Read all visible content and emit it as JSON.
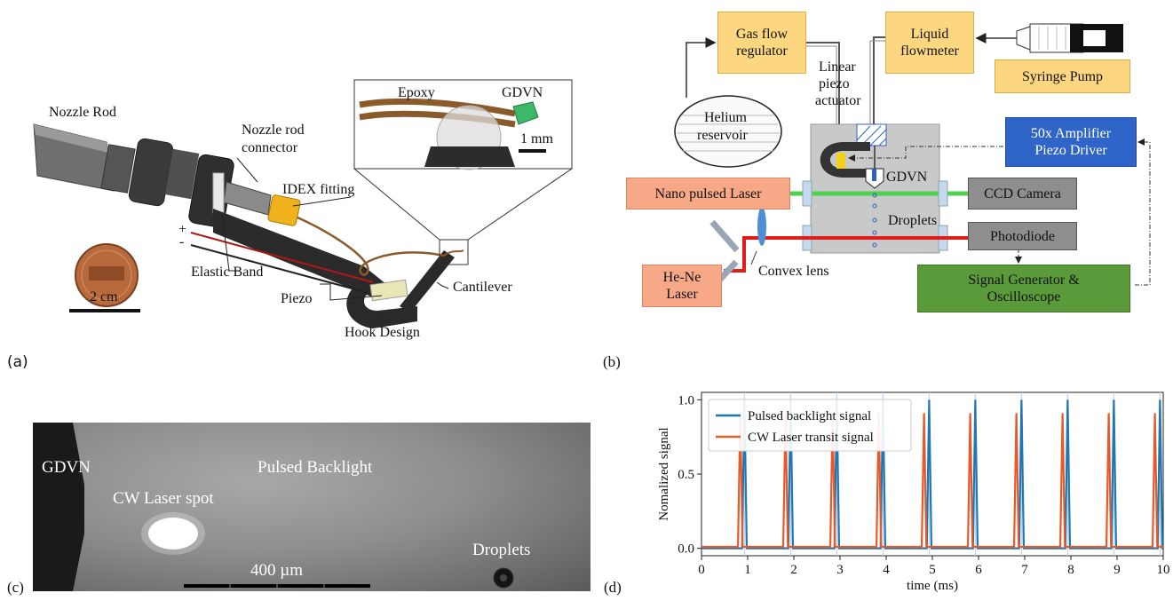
{
  "panel_a": {
    "label": "(a)",
    "nozzle_rod": "Nozzle Rod",
    "nozzle_rod_connector_1": "Nozzle rod",
    "nozzle_rod_connector_2": "connector",
    "idex_fitting": "IDEX fitting",
    "elastic_band": "Elastic Band",
    "piezo": "Piezo",
    "hook_design": "Hook Design",
    "cantilever": "Cantilever",
    "plus": "+",
    "minus": "-",
    "scale_bar": "2 cm",
    "inset_epoxy": "Epoxy",
    "inset_gdvn": "GDVN",
    "inset_scale": "1 mm"
  },
  "panel_b": {
    "label": "(b)",
    "gas_flow_regulator_1": "Gas flow",
    "gas_flow_regulator_2": "regulator",
    "liquid_flowmeter_1": "Liquid",
    "liquid_flowmeter_2": "flowmeter",
    "syringe_pump": "Syringe Pump",
    "helium_reservoir_1": "Helium",
    "helium_reservoir_2": "reservoir",
    "linear_piezo_1": "Linear",
    "linear_piezo_2": "piezo",
    "linear_piezo_3": "actuator",
    "amplifier_1": "50x Amplifier",
    "amplifier_2": "Piezo Driver",
    "gdvn": "GDVN",
    "nano_pulsed_laser": "Nano pulsed Laser",
    "ccd_camera": "CCD Camera",
    "droplets": "Droplets",
    "photodiode": "Photodiode",
    "convex_lens": "Convex lens",
    "he_ne_1": "He-Ne",
    "he_ne_2": "Laser",
    "signal_gen_1": "Signal Generator &",
    "signal_gen_2": "Oscilloscope"
  },
  "panel_c": {
    "label": "(c)",
    "gdvn": "GDVN",
    "pulsed_backlight": "Pulsed Backlight",
    "cw_laser_spot": "CW Laser spot",
    "droplets": "Droplets",
    "scale_bar": "400 µm"
  },
  "panel_d": {
    "label": "(d)"
  },
  "colors": {
    "series_blue": "#1f77b4",
    "series_orange": "#e8592a"
  },
  "chart_data": {
    "type": "line",
    "xlabel": "time (ms)",
    "ylabel": "Nomalized signal",
    "xlim": [
      0,
      10
    ],
    "ylim": [
      -0.05,
      1.05
    ],
    "xticks": [
      "0",
      "1",
      "2",
      "3",
      "4",
      "5",
      "6",
      "7",
      "8",
      "9",
      "10"
    ],
    "yticks": [
      "0.0",
      "0.5",
      "1.0"
    ],
    "legend_position": "top-left",
    "series": [
      {
        "name": "Pulsed backlight signal",
        "color": "#1f77b4",
        "peaks_x": [
          0.93,
          1.93,
          2.93,
          3.93,
          4.93,
          5.93,
          6.93,
          7.93,
          8.93,
          9.93
        ],
        "peak_y": 1.0,
        "baseline": 0.0
      },
      {
        "name": "CW Laser transit signal",
        "color": "#e8592a",
        "peaks_x": [
          0.84,
          1.82,
          2.84,
          3.84,
          4.82,
          5.82,
          6.82,
          7.82,
          8.82,
          9.82
        ],
        "peak_y": 0.91,
        "baseline": 0.01
      }
    ]
  }
}
